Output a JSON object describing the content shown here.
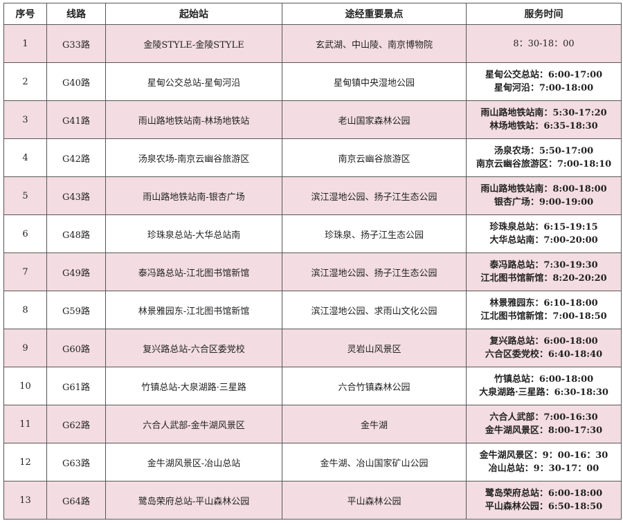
{
  "headers": [
    "序号",
    "线路",
    "起始站",
    "途经重要景点",
    "服务时间"
  ],
  "rows": [
    {
      "no": "1",
      "line": "G33路",
      "route": "金陵STYLE-金陵STYLE",
      "sights": "玄武湖、中山陵、南京博物院",
      "times": [
        "8：30-18：00"
      ]
    },
    {
      "no": "2",
      "line": "G40路",
      "route": "星甸公交总站-星甸河沿",
      "sights": "星甸镇中央湿地公园",
      "times": [
        "星甸公交总站：6:00-17:00",
        "星甸河沿：7:00-18:00"
      ]
    },
    {
      "no": "3",
      "line": "G41路",
      "route": "雨山路地铁站南-林场地铁站",
      "sights": "老山国家森林公园",
      "times": [
        "雨山路地铁站南：5:30-17:20",
        "林场地铁站：6:35-18:30"
      ]
    },
    {
      "no": "4",
      "line": "G42路",
      "route": "汤泉农场-南京云幽谷旅游区",
      "sights": "南京云幽谷旅游区",
      "times": [
        "汤泉农场：5:50-17:00",
        "南京云幽谷旅游区：7:00-18:10"
      ]
    },
    {
      "no": "5",
      "line": "G43路",
      "route": "雨山路地铁站南-银杏广场",
      "sights": "滨江湿地公园、扬子江生态公园",
      "times": [
        "雨山路地铁站南：8:00-18:00",
        "银杏广场：9:00-19:00"
      ]
    },
    {
      "no": "6",
      "line": "G48路",
      "route": "珍珠泉总站-大华总站南",
      "sights": "珍珠泉、扬子江生态公园",
      "times": [
        "珍珠泉总站：6:15-19:15",
        "大华总站南：7:00-20:00"
      ]
    },
    {
      "no": "7",
      "line": "G49路",
      "route": "泰冯路总站-江北图书馆新馆",
      "sights": "滨江湿地公园、扬子江生态公园",
      "times": [
        "泰冯路总站：7:30-19:30",
        "江北图书馆新馆：8:20-20:20"
      ]
    },
    {
      "no": "8",
      "line": "G59路",
      "route": "林景雅园东-江北图书馆新馆",
      "sights": "滨江湿地公园、求雨山文化公园",
      "times": [
        "林景雅园东：6:10-18:00",
        "江北图书馆新馆：7:00-18:50"
      ]
    },
    {
      "no": "9",
      "line": "G60路",
      "route": "复兴路总站-六合区委党校",
      "sights": "灵岩山风景区",
      "times": [
        "复兴路总站：6:00-18:00",
        "六合区委党校：6:40-18:40"
      ]
    },
    {
      "no": "10",
      "line": "G61路",
      "route": "竹镇总站-大泉湖路·三星路",
      "sights": "六合竹镇森林公园",
      "times": [
        "竹镇总站：6:00-18:00",
        "大泉湖路·三星路：6:30-18:30"
      ]
    },
    {
      "no": "11",
      "line": "G62路",
      "route": "六合人武部-金牛湖风景区",
      "sights": "金牛湖",
      "times": [
        "六合人武部：7:00-16:30",
        "金牛湖风景区：8:00-17:30"
      ]
    },
    {
      "no": "12",
      "line": "G63路",
      "route": "金牛湖风景区-冶山总站",
      "sights": "金牛湖、冶山国家矿山公园",
      "times": [
        "金牛湖风景区：9：00-16：30",
        "冶山总站：9：30-17：00"
      ]
    },
    {
      "no": "13",
      "line": "G64路",
      "route": "鹭岛荣府总站-平山森林公园",
      "sights": "平山森林公园",
      "times": [
        "鹭岛荣府总站：6:00-18:00",
        "平山森林公园：6:50-18:50"
      ]
    }
  ],
  "colors": {
    "row_highlight": "#f3dde2",
    "border": "#555555"
  }
}
